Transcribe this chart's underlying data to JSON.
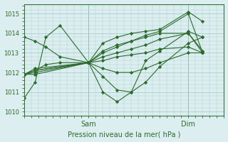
{
  "bg_color": "#dceef0",
  "grid_color": "#a8cece",
  "line_color": "#2d6a2d",
  "marker_color": "#2d6a2d",
  "xlabel": "Pression niveau de la mer( hPa )",
  "xlabel_color": "#2d6a2d",
  "tick_color": "#2d6a2d",
  "ylim": [
    1009.8,
    1015.5
  ],
  "yticks": [
    1010,
    1011,
    1012,
    1013,
    1014,
    1015
  ],
  "xlim": [
    0,
    56
  ],
  "xtick_positions": [
    18,
    46
  ],
  "xtick_labels": [
    "Sam",
    "Dim"
  ],
  "vlines": [
    18,
    46
  ],
  "series": [
    {
      "x": [
        0,
        3,
        6,
        10,
        18,
        22,
        26,
        30,
        34,
        38,
        46,
        50
      ],
      "y": [
        1010.7,
        1011.5,
        1013.8,
        1014.4,
        1012.5,
        1013.5,
        1013.8,
        1014.0,
        1014.1,
        1014.2,
        1015.1,
        1014.6
      ]
    },
    {
      "x": [
        0,
        3,
        6,
        10,
        18,
        22,
        26,
        30,
        34,
        38,
        46,
        50
      ],
      "y": [
        1011.9,
        1012.1,
        1012.4,
        1012.5,
        1012.5,
        1011.0,
        1010.5,
        1011.0,
        1012.6,
        1013.1,
        1014.1,
        1013.8
      ]
    },
    {
      "x": [
        0,
        3,
        18,
        22,
        26,
        30,
        34,
        38,
        46,
        50
      ],
      "y": [
        1011.9,
        1012.2,
        1012.5,
        1013.0,
        1013.3,
        1013.6,
        1013.9,
        1014.1,
        1015.0,
        1013.0
      ]
    },
    {
      "x": [
        0,
        3,
        18,
        22,
        26,
        30,
        34,
        38,
        46,
        50
      ],
      "y": [
        1011.9,
        1012.1,
        1012.5,
        1013.1,
        1013.4,
        1013.6,
        1013.8,
        1014.0,
        1014.0,
        1013.1
      ]
    },
    {
      "x": [
        0,
        3,
        18,
        22,
        26,
        30,
        34,
        38,
        46,
        50
      ],
      "y": [
        1011.9,
        1012.1,
        1012.5,
        1012.8,
        1013.0,
        1013.2,
        1013.4,
        1013.7,
        1014.0,
        1013.0
      ]
    },
    {
      "x": [
        0,
        3,
        18,
        22,
        26,
        30,
        34,
        38,
        46,
        50
      ],
      "y": [
        1011.9,
        1012.0,
        1012.5,
        1012.6,
        1012.8,
        1012.9,
        1013.0,
        1013.2,
        1013.3,
        1013.0
      ]
    },
    {
      "x": [
        0,
        3,
        18,
        22,
        26,
        30,
        34,
        38,
        46,
        50
      ],
      "y": [
        1011.9,
        1011.9,
        1012.5,
        1012.2,
        1012.0,
        1012.0,
        1012.2,
        1012.5,
        1013.0,
        1013.0
      ]
    },
    {
      "x": [
        0,
        3,
        6,
        10,
        18,
        22,
        26,
        30,
        34,
        38,
        46,
        50
      ],
      "y": [
        1013.8,
        1013.6,
        1013.3,
        1012.8,
        1012.5,
        1011.8,
        1011.1,
        1011.0,
        1011.5,
        1012.3,
        1013.5,
        1013.8
      ]
    }
  ]
}
